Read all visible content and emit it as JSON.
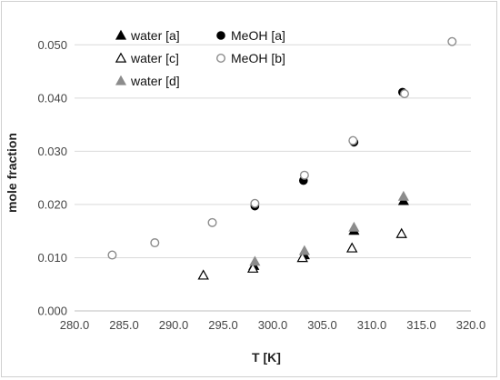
{
  "chart_data": {
    "type": "scatter",
    "xlabel": "T [K]",
    "ylabel": "mole fraction",
    "xlim": [
      280.0,
      320.0
    ],
    "ylim": [
      0.0,
      0.055
    ],
    "x_ticks": [
      280.0,
      285.0,
      290.0,
      295.0,
      300.0,
      305.0,
      310.0,
      315.0,
      320.0
    ],
    "y_ticks": [
      0.0,
      0.01,
      0.02,
      0.03,
      0.04,
      0.05
    ],
    "x_tick_labels": [
      "280.0",
      "285.0",
      "290.0",
      "295.0",
      "300.0",
      "305.0",
      "310.0",
      "315.0",
      "320.0"
    ],
    "y_tick_labels": [
      "0.000",
      "0.010",
      "0.020",
      "0.030",
      "0.040",
      "0.050"
    ],
    "grid": "horizontal",
    "legend_position": "top-left",
    "series": [
      {
        "name": "water [a]",
        "marker": "triangle-filled",
        "color": "#000000",
        "points": [
          [
            298.1,
            0.0085
          ],
          [
            303.2,
            0.0105
          ],
          [
            308.2,
            0.0151
          ],
          [
            313.2,
            0.0207
          ]
        ]
      },
      {
        "name": "water [c]",
        "marker": "triangle-open",
        "color": "#000000",
        "points": [
          [
            293.0,
            0.0067
          ],
          [
            298.0,
            0.008
          ],
          [
            303.0,
            0.01
          ],
          [
            308.0,
            0.0118
          ],
          [
            313.0,
            0.0145
          ]
        ]
      },
      {
        "name": "water [d]",
        "marker": "triangle-filled",
        "color": "#8c8c8c",
        "points": [
          [
            298.2,
            0.0093
          ],
          [
            303.2,
            0.0113
          ],
          [
            308.2,
            0.0157
          ],
          [
            313.2,
            0.0215
          ]
        ]
      },
      {
        "name": "MeOH [a]",
        "marker": "circle-filled",
        "color": "#000000",
        "points": [
          [
            298.2,
            0.0197
          ],
          [
            303.1,
            0.0245
          ],
          [
            308.2,
            0.0317
          ],
          [
            313.1,
            0.0411
          ]
        ]
      },
      {
        "name": "MeOH [b]",
        "marker": "circle-open",
        "color": "#8c8c8c",
        "points": [
          [
            283.8,
            0.0105
          ],
          [
            288.1,
            0.0128
          ],
          [
            293.9,
            0.0166
          ],
          [
            298.2,
            0.0202
          ],
          [
            303.2,
            0.0255
          ],
          [
            308.1,
            0.032
          ],
          [
            313.3,
            0.0408
          ],
          [
            318.1,
            0.0506
          ]
        ]
      }
    ]
  }
}
